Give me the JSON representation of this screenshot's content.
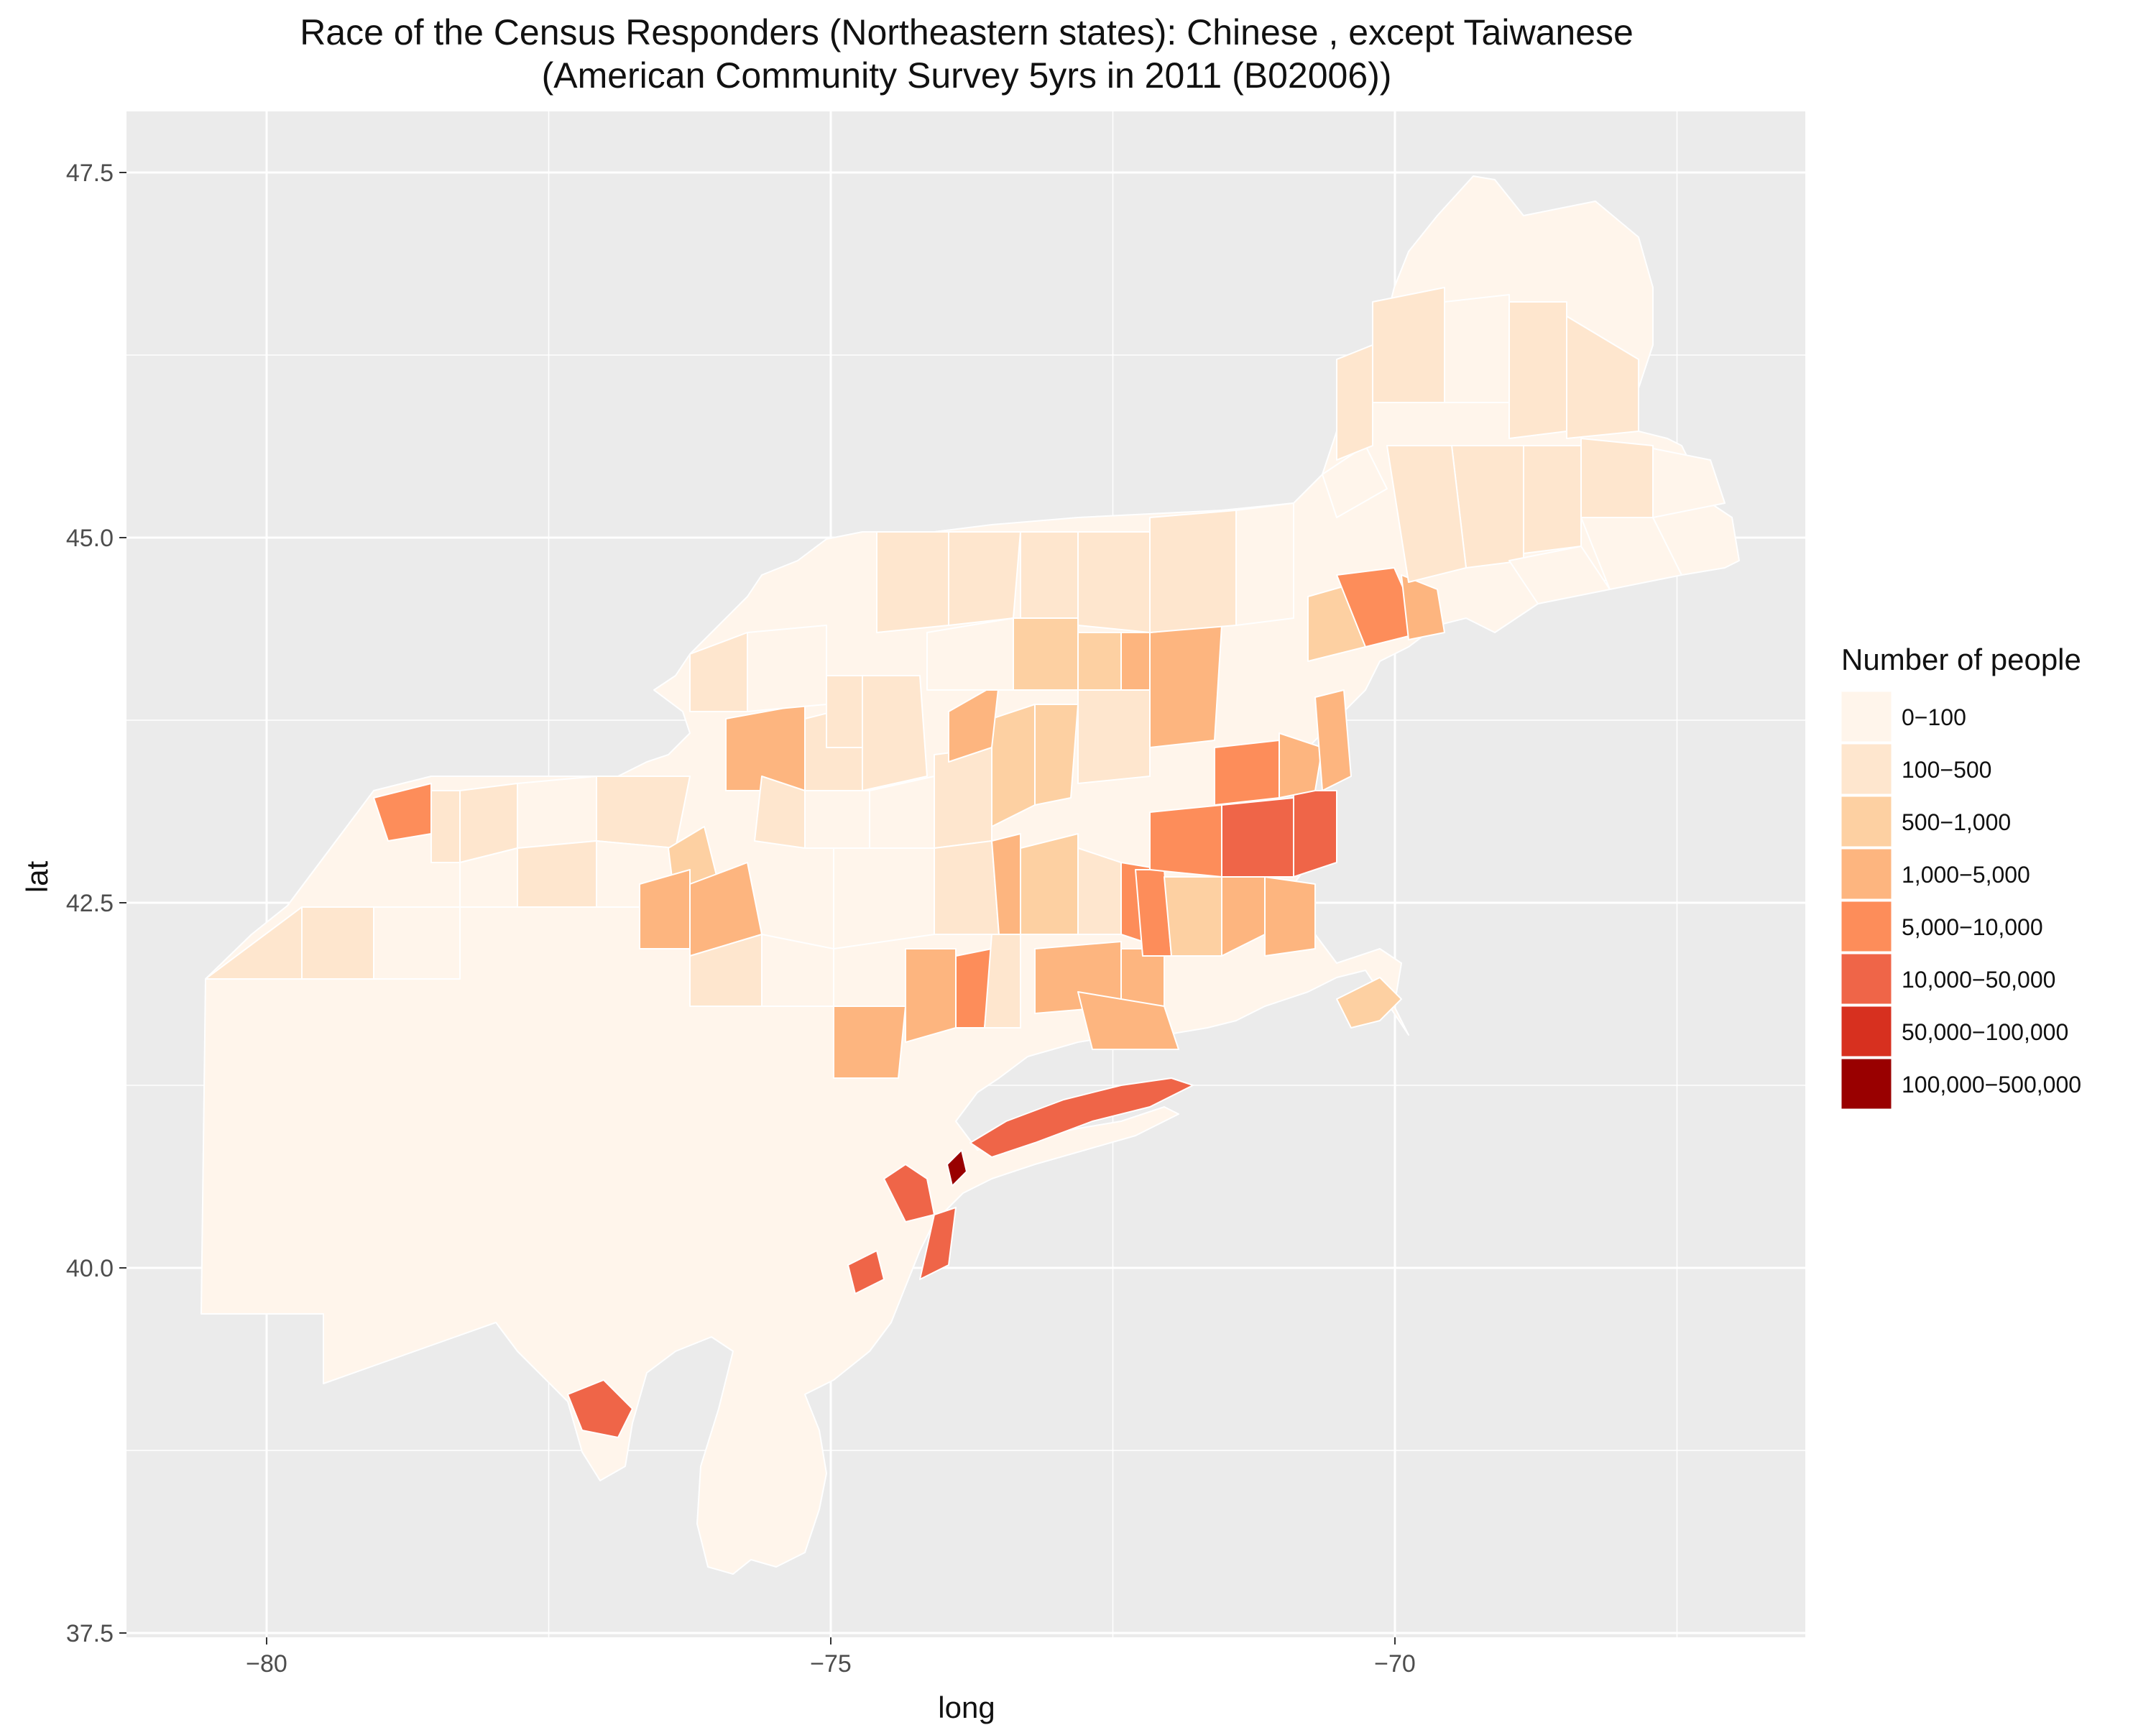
{
  "title_line1": "Race of the Census Responders (Northeastern states): Chinese , except Taiwanese",
  "title_line2": "(American Community Survey 5yrs in 2011 (B02006))",
  "x_axis_label": "long",
  "y_axis_label": "lat",
  "x_ticks": [
    "−80",
    "−75",
    "−70"
  ],
  "y_ticks": [
    "37.5",
    "40.0",
    "42.5",
    "45.0",
    "47.5"
  ],
  "legend": {
    "title": "Number of people",
    "items": [
      {
        "label": "0−100",
        "color": "#fff5eb"
      },
      {
        "label": "100−500",
        "color": "#fee6ce"
      },
      {
        "label": "500−1,000",
        "color": "#fdd0a2"
      },
      {
        "label": "1,000−5,000",
        "color": "#fdb57f"
      },
      {
        "label": "5,000−10,000",
        "color": "#fd8d5a"
      },
      {
        "label": "10,000−50,000",
        "color": "#ef6548"
      },
      {
        "label": "50,000−100,000",
        "color": "#d7301f"
      },
      {
        "label": "100,000−500,000",
        "color": "#990000"
      }
    ]
  },
  "colors": {
    "panel_background": "#ebebeb",
    "grid": "#ffffff",
    "region_outline": "#ffffff"
  }
}
